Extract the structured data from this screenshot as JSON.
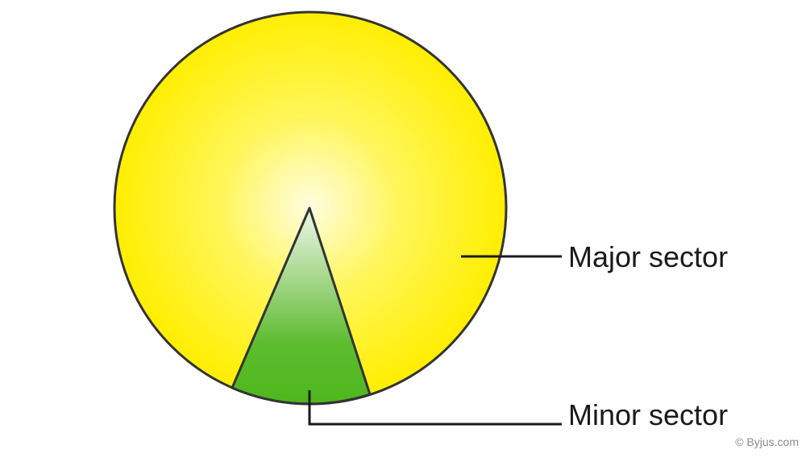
{
  "diagram": {
    "major_label": "Major sector",
    "minor_label": "Minor sector",
    "watermark": "© Byjus.com"
  },
  "colors": {
    "major_fill_center": "#fffde0",
    "major_fill_edge": "#ffee00",
    "minor_fill_top": "#e6f3df",
    "minor_fill_bottom": "#4fb81d",
    "outline": "#333333",
    "leader_line": "#1a1a1a"
  }
}
